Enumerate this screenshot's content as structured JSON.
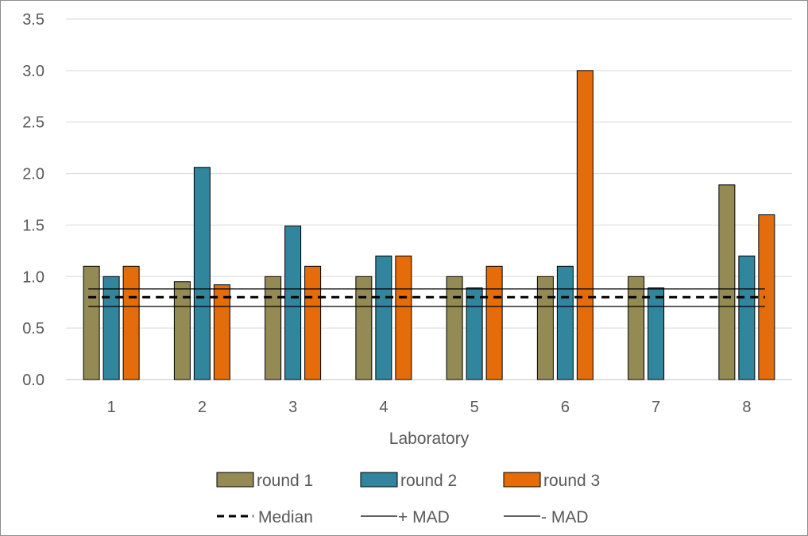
{
  "chart_data": {
    "type": "bar",
    "xlabel": "Laboratory",
    "ylabel": "",
    "ylim": [
      0,
      3.5
    ],
    "yticks": [
      "0.0",
      "0.5",
      "1.0",
      "1.5",
      "2.0",
      "2.5",
      "3.0",
      "3.5"
    ],
    "categories": [
      "1",
      "2",
      "3",
      "4",
      "5",
      "6",
      "7",
      "8"
    ],
    "grid": true,
    "legend_position": "bottom",
    "series": [
      {
        "name": "round 1",
        "color": "#948A54",
        "values": [
          1.1,
          0.95,
          1.0,
          1.0,
          1.0,
          1.0,
          1.0,
          1.89
        ]
      },
      {
        "name": "round 2",
        "color": "#31859C",
        "values": [
          1.0,
          2.06,
          1.49,
          1.2,
          0.89,
          1.1,
          0.89,
          1.2
        ]
      },
      {
        "name": "round 3",
        "color": "#E46C0A",
        "values": [
          1.1,
          0.92,
          1.1,
          1.2,
          1.1,
          3.0,
          null,
          1.6
        ]
      }
    ],
    "reference_lines": [
      {
        "name": "Median",
        "value": 0.8,
        "style": "dashed"
      },
      {
        "name": "+ MAD",
        "value": 0.88,
        "style": "solid"
      },
      {
        "name": "- MAD",
        "value": 0.71,
        "style": "solid"
      }
    ]
  }
}
